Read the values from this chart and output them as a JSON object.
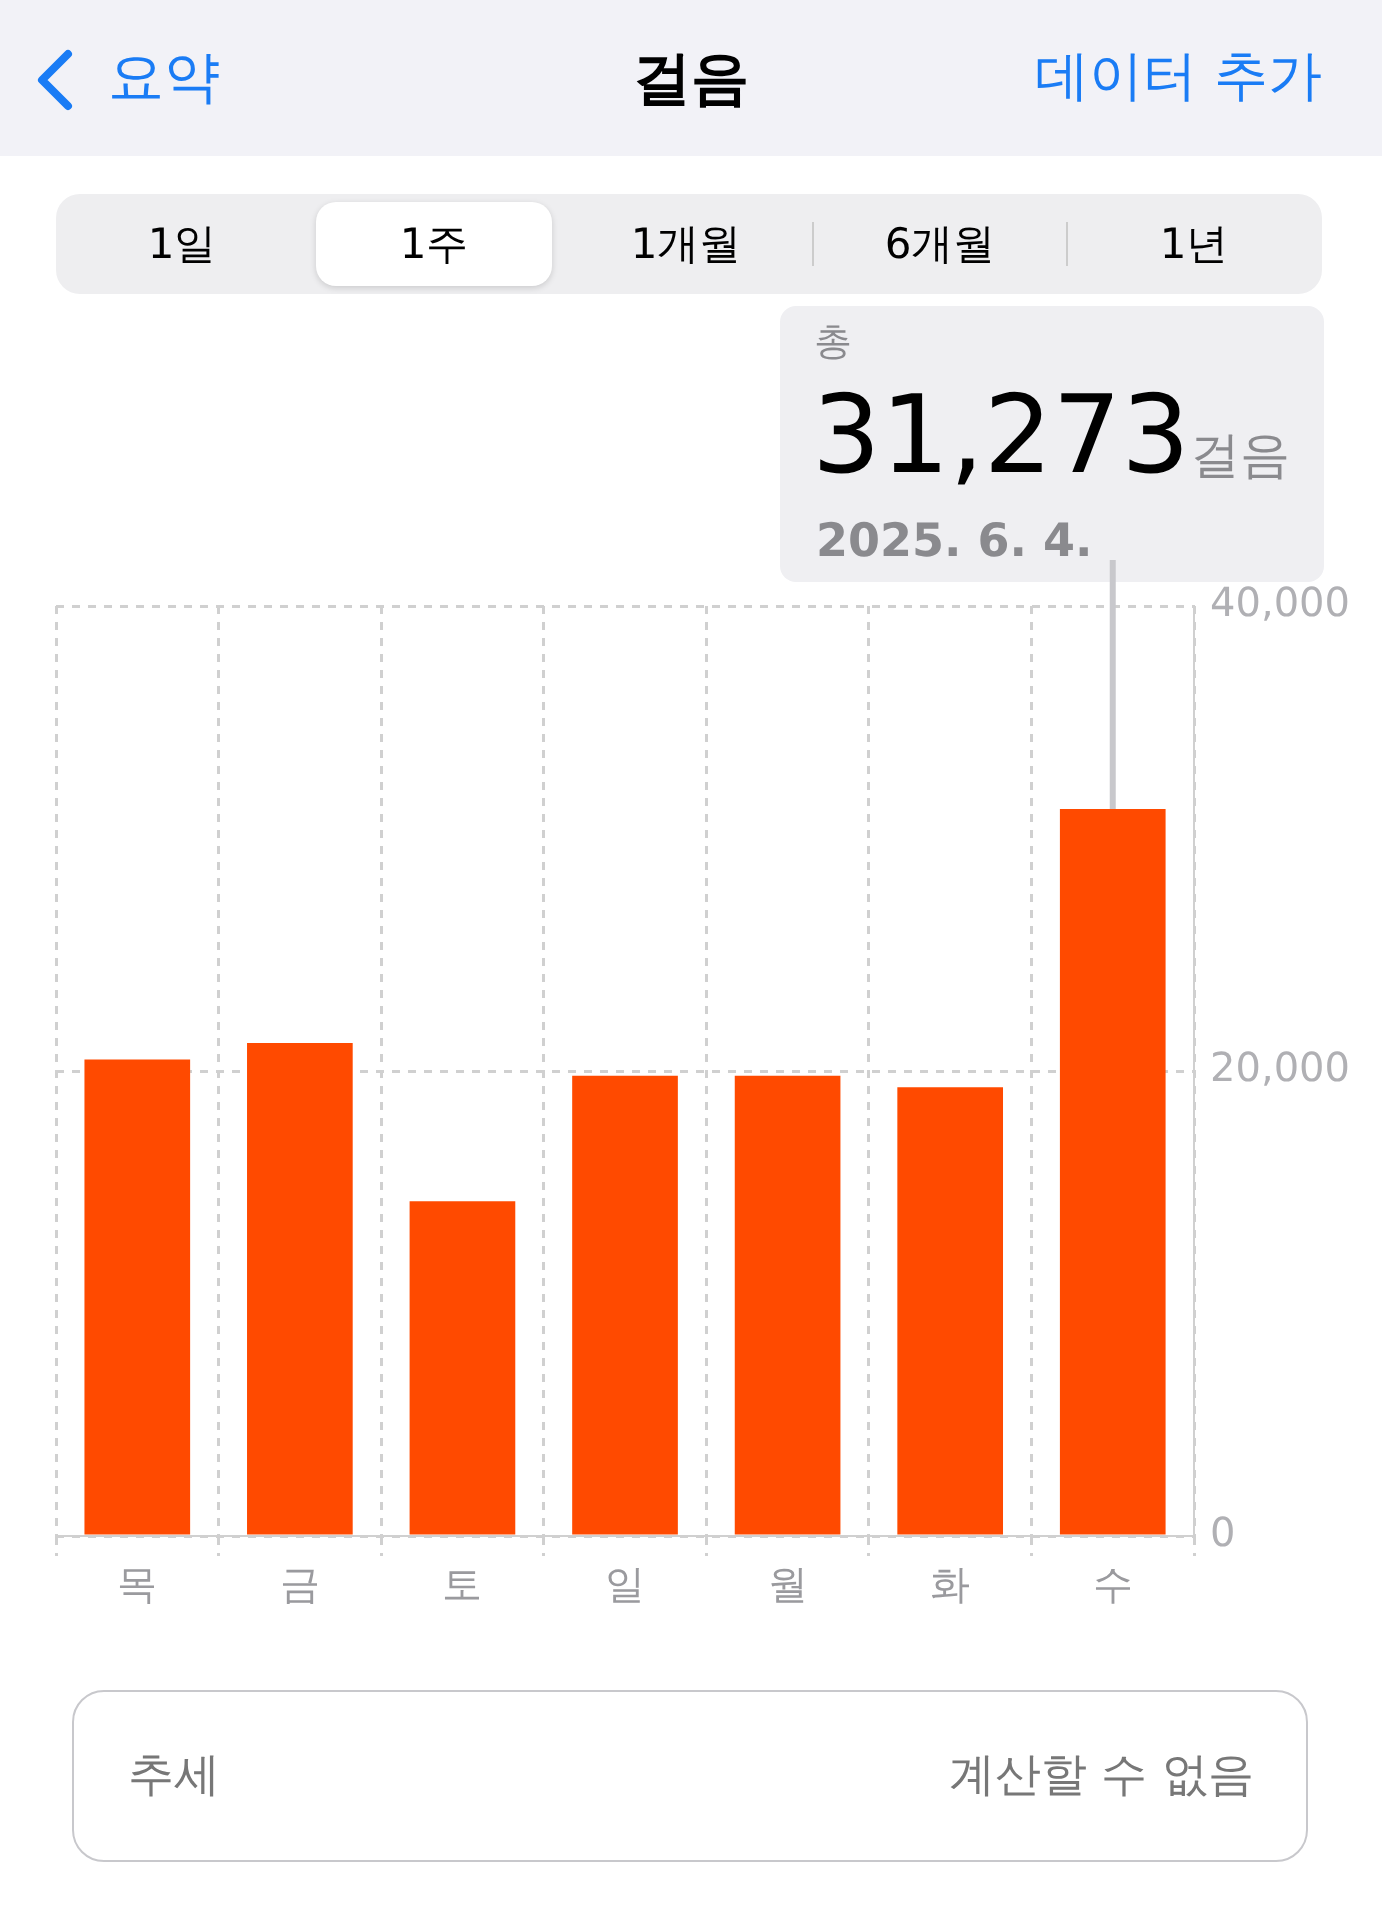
{
  "chart_data": {
    "type": "bar",
    "title": "걸음",
    "categories": [
      "목",
      "금",
      "토",
      "일",
      "월",
      "화",
      "수"
    ],
    "values": [
      20500,
      21200,
      14400,
      19800,
      19800,
      19300,
      31273
    ],
    "color": "#ff4a00",
    "ylim": [
      0,
      40000
    ],
    "yticks": [
      {
        "value": 0,
        "label": "0"
      },
      {
        "value": 20000,
        "label": "20,000"
      },
      {
        "value": 40000,
        "label": "40,000"
      }
    ],
    "grid": true,
    "legend": false,
    "annotations": [
      "요약",
      "데이터 추가",
      "1일",
      "1주",
      "1개월",
      "6개월",
      "1년",
      "총",
      {
        "text": "31,273걸음",
        "x": "수",
        "y": 31273
      },
      "2025. 6. 4.",
      "추세",
      "계산할 수 없음"
    ]
  }
}
